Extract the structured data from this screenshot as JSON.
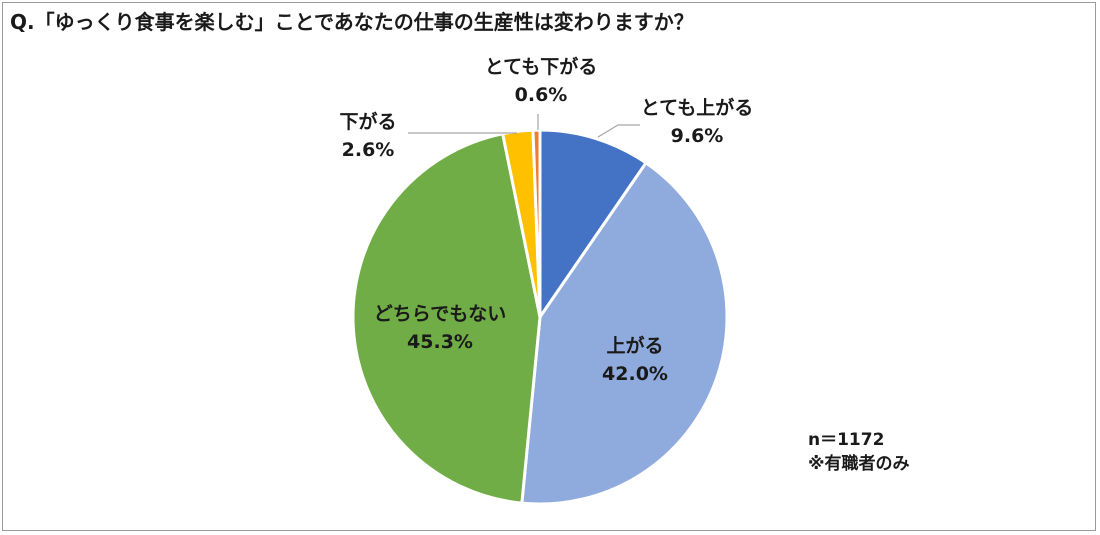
{
  "title": "Q.「ゆっくり食事を楽しむ」ことであなたの仕事の生産性は変わりますか？",
  "note": {
    "n": "n＝1172",
    "scope": "※有職者のみ"
  },
  "chart_data": {
    "type": "pie",
    "title": "Q.「ゆっくり食事を楽しむ」ことであなたの仕事の生産性は変わりますか？",
    "unit": "%",
    "slices": [
      {
        "label": "とても上がる",
        "value": 9.6,
        "value_label": "9.6%",
        "color": "#4472C4"
      },
      {
        "label": "上がる",
        "value": 42.0,
        "value_label": "42.0%",
        "color": "#8FAADC"
      },
      {
        "label": "どちらでもない",
        "value": 45.3,
        "value_label": "45.3%",
        "color": "#70AD47"
      },
      {
        "label": "下がる",
        "value": 2.6,
        "value_label": "2.6%",
        "color": "#FFC000"
      },
      {
        "label": "とても下がる",
        "value": 0.6,
        "value_label": "0.6%",
        "color": "#ED7D31"
      }
    ]
  }
}
